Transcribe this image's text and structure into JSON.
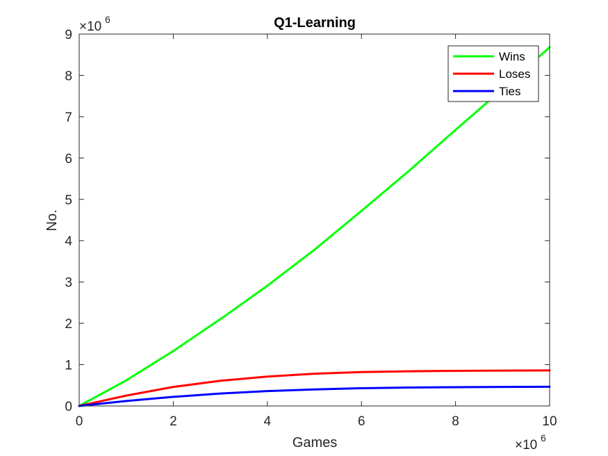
{
  "chart_data": {
    "type": "line",
    "title": "Q1-Learning",
    "xlabel": "Games",
    "ylabel": "No.",
    "x_exponent": "×10",
    "x_exponent_power": "6",
    "y_exponent": "×10",
    "y_exponent_power": "6",
    "xlim": [
      0,
      10
    ],
    "ylim": [
      0,
      9
    ],
    "x_ticks": [
      "0",
      "2",
      "4",
      "6",
      "8",
      "10"
    ],
    "y_ticks": [
      "0",
      "1",
      "2",
      "3",
      "4",
      "5",
      "6",
      "7",
      "8",
      "9"
    ],
    "grid": false,
    "legend_position": "top-right",
    "x": [
      0,
      1,
      2,
      3,
      4,
      5,
      6,
      7,
      8,
      9,
      10
    ],
    "series": [
      {
        "name": "Wins",
        "color": "#00ff00",
        "values": [
          0,
          0.62,
          1.33,
          2.1,
          2.91,
          3.78,
          4.72,
          5.68,
          6.68,
          7.67,
          8.68
        ]
      },
      {
        "name": "Loses",
        "color": "#ff0000",
        "values": [
          0,
          0.25,
          0.46,
          0.61,
          0.71,
          0.78,
          0.82,
          0.84,
          0.85,
          0.855,
          0.86
        ]
      },
      {
        "name": "Ties",
        "color": "#0000ff",
        "values": [
          0,
          0.12,
          0.22,
          0.3,
          0.36,
          0.4,
          0.43,
          0.445,
          0.455,
          0.46,
          0.465
        ]
      }
    ]
  }
}
